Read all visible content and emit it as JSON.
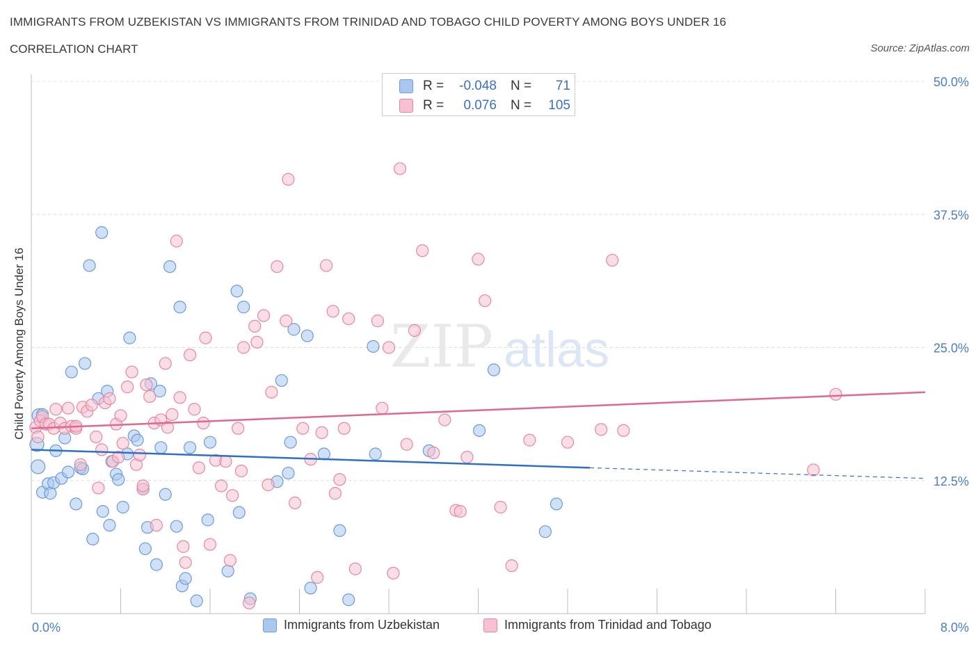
{
  "header": {
    "title": "IMMIGRANTS FROM UZBEKISTAN VS IMMIGRANTS FROM TRINIDAD AND TOBAGO CHILD POVERTY AMONG BOYS UNDER 16",
    "subtitle": "CORRELATION CHART",
    "source": "Source: ZipAtlas.com"
  },
  "watermark": {
    "zip": "ZIP",
    "atlas": "atlas"
  },
  "legend_stats": {
    "rows": [
      {
        "r_label": "R =",
        "r_value": "-0.048",
        "n_label": "N =",
        "n_value": "71"
      },
      {
        "r_label": "R =",
        "r_value": "0.076",
        "n_label": "N =",
        "n_value": "105"
      }
    ]
  },
  "chart_data": {
    "type": "scatter",
    "ylabel": "Child Poverty Among Boys Under 16",
    "xlabel": "",
    "xlim": [
      0,
      8
    ],
    "ylim": [
      0,
      50
    ],
    "x_tick_labels": [
      "0.0%",
      "8.0%"
    ],
    "y_tick_labels": [
      "12.5%",
      "25.0%",
      "37.5%",
      "50.0%"
    ],
    "y_ticks": [
      12.5,
      25.0,
      37.5,
      50.0
    ],
    "grid": true,
    "legend_position": "bottom-center",
    "series": [
      {
        "name": "Immigrants from Uzbekistan",
        "color": "#aac7ee",
        "stroke": "#6b9bd8",
        "trend_color": "#2f6fc7",
        "trend": {
          "x0": 0.0,
          "y0": 15.4,
          "x1": 5.0,
          "y1": 13.7,
          "dash_to_x": 8.0,
          "dash_to_y": 12.7
        },
        "points": [
          [
            0.05,
            15.9
          ],
          [
            0.06,
            13.8
          ],
          [
            0.07,
            18.6
          ],
          [
            0.1,
            18.7
          ],
          [
            0.1,
            11.4
          ],
          [
            0.15,
            12.2
          ],
          [
            0.17,
            11.3
          ],
          [
            0.2,
            12.3
          ],
          [
            0.22,
            15.3
          ],
          [
            0.27,
            12.7
          ],
          [
            0.3,
            16.5
          ],
          [
            0.33,
            13.3
          ],
          [
            0.36,
            22.7
          ],
          [
            0.4,
            10.3
          ],
          [
            0.44,
            13.7
          ],
          [
            0.48,
            23.5
          ],
          [
            0.52,
            32.7
          ],
          [
            0.55,
            7.0
          ],
          [
            0.6,
            20.2
          ],
          [
            0.63,
            35.8
          ],
          [
            0.64,
            9.6
          ],
          [
            0.68,
            20.9
          ],
          [
            0.7,
            8.3
          ],
          [
            0.72,
            14.3
          ],
          [
            0.76,
            13.1
          ],
          [
            0.78,
            12.6
          ],
          [
            0.82,
            10.0
          ],
          [
            0.86,
            15.0
          ],
          [
            0.88,
            25.9
          ],
          [
            0.92,
            16.7
          ],
          [
            0.95,
            16.3
          ],
          [
            1.0,
            11.7
          ],
          [
            1.02,
            6.1
          ],
          [
            1.04,
            8.1
          ],
          [
            1.07,
            21.6
          ],
          [
            1.12,
            4.6
          ],
          [
            1.15,
            20.9
          ],
          [
            1.16,
            15.6
          ],
          [
            1.2,
            11.2
          ],
          [
            1.24,
            32.6
          ],
          [
            1.3,
            8.2
          ],
          [
            1.33,
            28.8
          ],
          [
            1.35,
            2.6
          ],
          [
            1.38,
            3.3
          ],
          [
            1.42,
            15.6
          ],
          [
            1.48,
            1.2
          ],
          [
            1.58,
            8.8
          ],
          [
            1.6,
            16.1
          ],
          [
            1.76,
            4.0
          ],
          [
            1.84,
            30.3
          ],
          [
            1.86,
            9.5
          ],
          [
            1.9,
            28.8
          ],
          [
            1.96,
            1.4
          ],
          [
            2.2,
            12.4
          ],
          [
            2.24,
            21.9
          ],
          [
            2.3,
            13.2
          ],
          [
            2.32,
            16.1
          ],
          [
            2.35,
            26.7
          ],
          [
            2.47,
            26.1
          ],
          [
            2.5,
            2.4
          ],
          [
            2.62,
            15.0
          ],
          [
            2.76,
            7.8
          ],
          [
            2.84,
            1.3
          ],
          [
            3.06,
            25.1
          ],
          [
            3.08,
            15.0
          ],
          [
            3.56,
            15.3
          ],
          [
            4.01,
            17.2
          ],
          [
            4.14,
            22.9
          ],
          [
            4.6,
            7.7
          ],
          [
            4.7,
            10.3
          ],
          [
            0.46,
            13.6
          ]
        ]
      },
      {
        "name": "Immigrants from Trinidad and Tobago",
        "color": "#f6c2d2",
        "stroke": "#e8859f",
        "trend_color": "#e0678f",
        "trend": {
          "x0": 0.0,
          "y0": 17.4,
          "x1": 8.0,
          "y1": 20.8
        },
        "points": [
          [
            0.04,
            17.5
          ],
          [
            0.06,
            16.6
          ],
          [
            0.08,
            18.1
          ],
          [
            0.1,
            18.5
          ],
          [
            0.13,
            17.8
          ],
          [
            0.16,
            17.8
          ],
          [
            0.2,
            17.4
          ],
          [
            0.22,
            19.2
          ],
          [
            0.26,
            17.9
          ],
          [
            0.3,
            17.4
          ],
          [
            0.33,
            19.3
          ],
          [
            0.36,
            17.6
          ],
          [
            0.4,
            17.4
          ],
          [
            0.44,
            14.0
          ],
          [
            0.46,
            19.4
          ],
          [
            0.5,
            19.0
          ],
          [
            0.54,
            19.6
          ],
          [
            0.58,
            16.6
          ],
          [
            0.6,
            11.8
          ],
          [
            0.63,
            15.4
          ],
          [
            0.66,
            19.8
          ],
          [
            0.7,
            20.2
          ],
          [
            0.73,
            14.3
          ],
          [
            0.76,
            17.8
          ],
          [
            0.8,
            18.6
          ],
          [
            0.82,
            16.0
          ],
          [
            0.86,
            21.3
          ],
          [
            0.9,
            22.7
          ],
          [
            0.94,
            14.0
          ],
          [
            0.97,
            14.9
          ],
          [
            1.0,
            11.7
          ],
          [
            1.03,
            21.5
          ],
          [
            1.06,
            20.4
          ],
          [
            1.1,
            17.9
          ],
          [
            1.12,
            8.3
          ],
          [
            1.16,
            18.2
          ],
          [
            1.2,
            23.5
          ],
          [
            1.22,
            17.5
          ],
          [
            1.26,
            18.7
          ],
          [
            1.3,
            35.0
          ],
          [
            1.33,
            20.3
          ],
          [
            1.36,
            6.3
          ],
          [
            1.38,
            4.8
          ],
          [
            1.42,
            24.3
          ],
          [
            1.46,
            19.2
          ],
          [
            1.5,
            13.7
          ],
          [
            1.54,
            17.9
          ],
          [
            1.56,
            25.9
          ],
          [
            1.6,
            6.5
          ],
          [
            1.65,
            14.4
          ],
          [
            1.7,
            12.0
          ],
          [
            1.74,
            14.3
          ],
          [
            1.78,
            5.0
          ],
          [
            1.8,
            11.1
          ],
          [
            1.85,
            17.4
          ],
          [
            1.88,
            13.4
          ],
          [
            1.9,
            25.0
          ],
          [
            1.95,
            1.0
          ],
          [
            2.0,
            27.0
          ],
          [
            2.02,
            25.5
          ],
          [
            2.08,
            28.0
          ],
          [
            2.12,
            12.1
          ],
          [
            2.15,
            20.8
          ],
          [
            2.2,
            32.6
          ],
          [
            2.28,
            27.5
          ],
          [
            2.3,
            40.8
          ],
          [
            2.36,
            10.4
          ],
          [
            2.43,
            17.4
          ],
          [
            2.5,
            14.5
          ],
          [
            2.56,
            3.4
          ],
          [
            2.6,
            17.0
          ],
          [
            2.64,
            32.7
          ],
          [
            2.7,
            28.4
          ],
          [
            2.72,
            11.3
          ],
          [
            2.76,
            12.6
          ],
          [
            2.8,
            17.4
          ],
          [
            2.84,
            27.7
          ],
          [
            2.9,
            4.2
          ],
          [
            3.1,
            27.5
          ],
          [
            3.14,
            19.3
          ],
          [
            3.2,
            25.0
          ],
          [
            3.24,
            3.8
          ],
          [
            3.3,
            41.8
          ],
          [
            3.36,
            15.9
          ],
          [
            3.43,
            26.6
          ],
          [
            3.5,
            34.1
          ],
          [
            3.6,
            15.1
          ],
          [
            3.7,
            18.2
          ],
          [
            3.8,
            9.7
          ],
          [
            3.84,
            9.6
          ],
          [
            3.9,
            14.7
          ],
          [
            4.0,
            33.3
          ],
          [
            4.06,
            29.4
          ],
          [
            4.2,
            10.0
          ],
          [
            4.3,
            4.5
          ],
          [
            4.46,
            16.3
          ],
          [
            4.8,
            16.1
          ],
          [
            5.1,
            17.3
          ],
          [
            5.2,
            33.2
          ],
          [
            5.3,
            17.2
          ],
          [
            7.0,
            13.5
          ],
          [
            7.2,
            20.6
          ],
          [
            0.78,
            14.7
          ],
          [
            1.0,
            12.0
          ],
          [
            0.4,
            17.6
          ]
        ]
      }
    ]
  }
}
